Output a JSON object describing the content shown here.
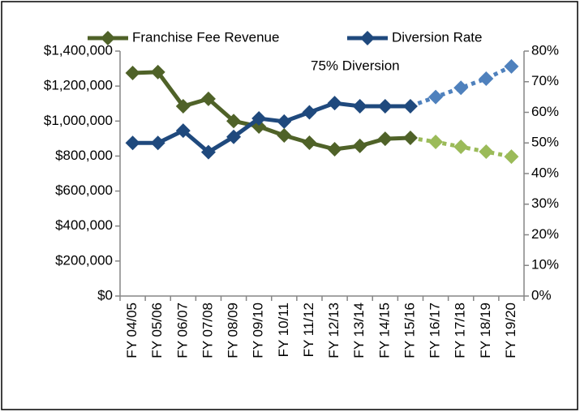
{
  "chart_data": {
    "type": "line",
    "annotation": "75% Diversion",
    "categories": [
      "FY 04/05",
      "FY 05/06",
      "FY 06/07",
      "FY 07/08",
      "FY 08/09",
      "FY 09/10",
      "FY 10/11",
      "FY 11/12",
      "FY 12/13",
      "FY 13/14",
      "FY 14/15",
      "FY 15/16",
      "FY 16/17",
      "FY 17/18",
      "FY 18/19",
      "FY 19/20"
    ],
    "series": [
      {
        "name": "Franchise Fee Revenue",
        "color": "#4f6228",
        "projected_color": "#9bbb59",
        "projected_from_index": 12,
        "axis": "y",
        "values": [
          1275000,
          1280000,
          1085000,
          1127000,
          1000000,
          969000,
          918000,
          876000,
          839000,
          858000,
          899000,
          904000,
          881000,
          853000,
          825000,
          797000
        ]
      },
      {
        "name": "Diversion Rate",
        "color": "#1f497d",
        "projected_color": "#4f81bd",
        "projected_from_index": 12,
        "axis": "y2",
        "values": [
          50,
          50,
          54,
          47,
          52,
          58,
          57,
          60,
          63,
          62,
          62,
          62,
          65,
          68,
          71,
          75
        ]
      }
    ],
    "ylim": [
      0,
      1400000
    ],
    "yticks": [
      {
        "value": 0,
        "label": "$0"
      },
      {
        "value": 200000,
        "label": "$200,000"
      },
      {
        "value": 400000,
        "label": "$400,000"
      },
      {
        "value": 600000,
        "label": "$600,000"
      },
      {
        "value": 800000,
        "label": "$800,000"
      },
      {
        "value": 1000000,
        "label": "$1,000,000"
      },
      {
        "value": 1200000,
        "label": "$1,200,000"
      },
      {
        "value": 1400000,
        "label": "$1,400,000"
      }
    ],
    "y2lim": [
      0,
      80
    ],
    "y2ticks": [
      {
        "value": 0,
        "label": "0%"
      },
      {
        "value": 10,
        "label": "10%"
      },
      {
        "value": 20,
        "label": "20%"
      },
      {
        "value": 30,
        "label": "30%"
      },
      {
        "value": 40,
        "label": "40%"
      },
      {
        "value": 50,
        "label": "50%"
      },
      {
        "value": 60,
        "label": "60%"
      },
      {
        "value": 70,
        "label": "70%"
      },
      {
        "value": 80,
        "label": "80%"
      }
    ],
    "grid": false,
    "legend": "top"
  }
}
